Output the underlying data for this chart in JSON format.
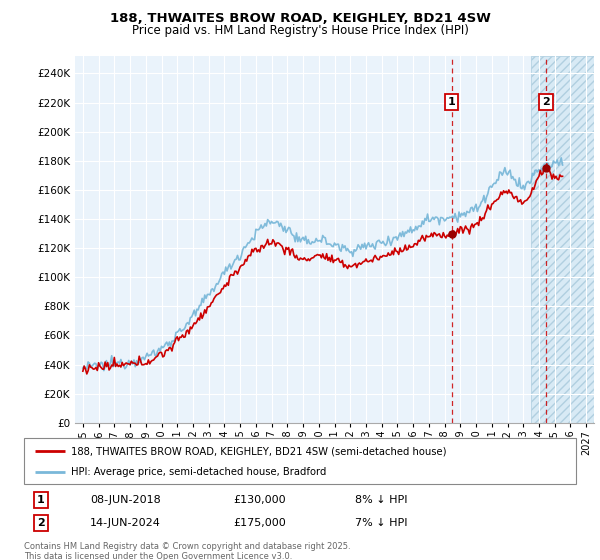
{
  "title": "188, THWAITES BROW ROAD, KEIGHLEY, BD21 4SW",
  "subtitle": "Price paid vs. HM Land Registry's House Price Index (HPI)",
  "ylabel_ticks": [
    0,
    20000,
    40000,
    60000,
    80000,
    100000,
    120000,
    140000,
    160000,
    180000,
    200000,
    220000,
    240000
  ],
  "ylabel_labels": [
    "£0",
    "£20K",
    "£40K",
    "£60K",
    "£80K",
    "£100K",
    "£120K",
    "£140K",
    "£160K",
    "£180K",
    "£200K",
    "£220K",
    "£240K"
  ],
  "xlim": [
    1994.5,
    2027.5
  ],
  "ylim": [
    0,
    252000
  ],
  "hpi_color": "#7ab8d9",
  "price_color": "#cc0000",
  "transaction1": {
    "year": 2018.44,
    "price": 130000,
    "label": "1",
    "date": "08-JUN-2018",
    "amount": "£130,000",
    "note": "8% ↓ HPI"
  },
  "transaction2": {
    "year": 2024.45,
    "price": 175000,
    "label": "2",
    "date": "14-JUN-2024",
    "amount": "£175,000",
    "note": "7% ↓ HPI"
  },
  "legend_line1": "188, THWAITES BROW ROAD, KEIGHLEY, BD21 4SW (semi-detached house)",
  "legend_line2": "HPI: Average price, semi-detached house, Bradford",
  "footer": "Contains HM Land Registry data © Crown copyright and database right 2025.\nThis data is licensed under the Open Government Licence v3.0.",
  "hatch_start": 2023.5,
  "dashed_line1": 2018.44,
  "dashed_line2": 2024.45,
  "bg_color": "#eaf3fb",
  "grid_color": "#ffffff",
  "hatch_color": "#d8eaf5"
}
